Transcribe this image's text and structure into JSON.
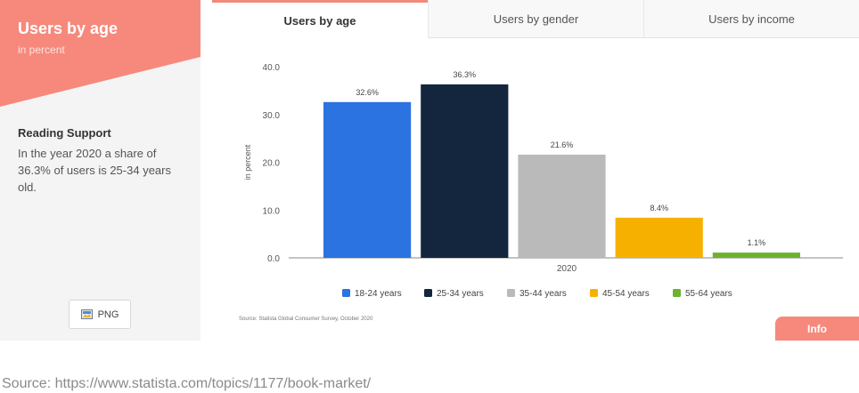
{
  "left": {
    "title": "Users by age",
    "subtitle": "in percent",
    "reading_support_title": "Reading Support",
    "reading_support_text": "In the year 2020 a share of 36.3% of users is 25-34 years old.",
    "png_label": "PNG",
    "accent_color": "#f6897c"
  },
  "tabs": [
    {
      "label": "Users by age",
      "active": true
    },
    {
      "label": "Users by gender",
      "active": false
    },
    {
      "label": "Users by income",
      "active": false
    }
  ],
  "chart_data": {
    "type": "bar",
    "categories": [
      "2020"
    ],
    "series": [
      {
        "name": "18-24 years",
        "values": [
          32.6
        ],
        "color": "#2a73e0"
      },
      {
        "name": "25-34 years",
        "values": [
          36.3
        ],
        "color": "#13263d"
      },
      {
        "name": "35-44 years",
        "values": [
          21.6
        ],
        "color": "#b9bab9"
      },
      {
        "name": "45-54 years",
        "values": [
          8.4
        ],
        "color": "#f6b100"
      },
      {
        "name": "55-64 years",
        "values": [
          1.1
        ],
        "color": "#6cb32d"
      }
    ],
    "data_labels": [
      "32.6%",
      "36.3%",
      "21.6%",
      "8.4%",
      "1.1%"
    ],
    "ylabel": "in percent",
    "ylim": [
      0,
      40
    ],
    "yticks": [
      "0.0",
      "10.0",
      "20.0",
      "30.0",
      "40.0"
    ],
    "ytick_values": [
      0,
      10,
      20,
      30,
      40
    ],
    "grid": false,
    "legend_position": "bottom",
    "source_note": "Source: Statista Global Consumer Survey, October 2020"
  },
  "info_label": "Info",
  "source_line": "Source: https://www.statista.com/topics/1177/book-market/"
}
